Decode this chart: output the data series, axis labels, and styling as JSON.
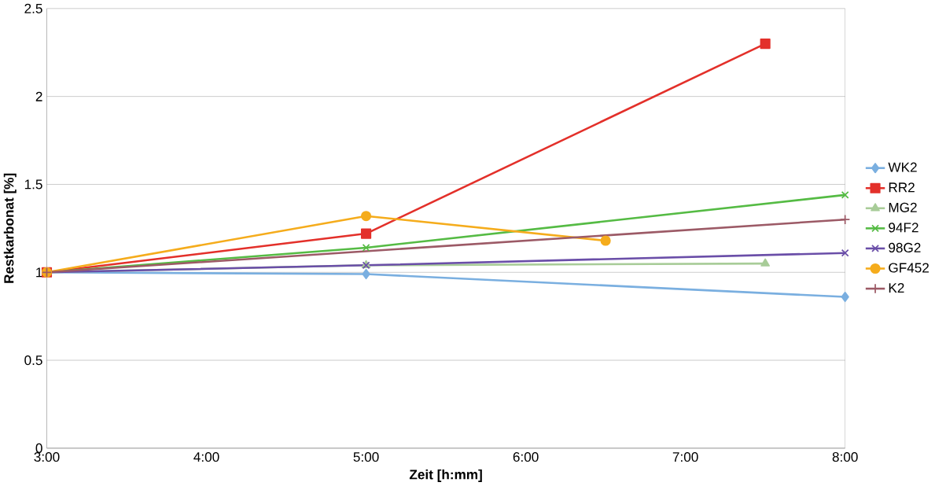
{
  "chart_data": {
    "type": "line",
    "xlabel": "Zeit [h:mm]",
    "ylabel": "Restkarbonat [%]",
    "xlim": [
      3,
      8
    ],
    "xticks": [
      {
        "value": 3,
        "label": "3:00"
      },
      {
        "value": 4,
        "label": "4:00"
      },
      {
        "value": 5,
        "label": "5:00"
      },
      {
        "value": 6,
        "label": "6:00"
      },
      {
        "value": 7,
        "label": "7:00"
      },
      {
        "value": 8,
        "label": "8:00"
      }
    ],
    "ylim": [
      0,
      2.5
    ],
    "yticks": [
      0,
      0.5,
      1,
      1.5,
      2,
      2.5
    ],
    "grid": "y",
    "legend": "right",
    "series": [
      {
        "name": "WK2",
        "color": "#7aafe0",
        "marker": "diamond",
        "x": [
          3,
          5,
          8
        ],
        "values": [
          1.0,
          0.99,
          0.86
        ]
      },
      {
        "name": "RR2",
        "color": "#e3302a",
        "marker": "square",
        "x": [
          3,
          5,
          7.5
        ],
        "values": [
          1.0,
          1.22,
          2.3
        ]
      },
      {
        "name": "MG2",
        "color": "#a8cc98",
        "marker": "triangle",
        "x": [
          3,
          5,
          7.5
        ],
        "values": [
          1.0,
          1.04,
          1.05
        ]
      },
      {
        "name": "94F2",
        "color": "#55bb44",
        "marker": "cross",
        "x": [
          3,
          5,
          8
        ],
        "values": [
          1.0,
          1.14,
          1.44
        ]
      },
      {
        "name": "98G2",
        "color": "#6a4ea8",
        "marker": "cross",
        "x": [
          3,
          5,
          8
        ],
        "values": [
          1.0,
          1.04,
          1.11
        ]
      },
      {
        "name": "GF452",
        "color": "#f5ac1c",
        "marker": "circle",
        "x": [
          3,
          5,
          6.5
        ],
        "values": [
          1.0,
          1.32,
          1.18
        ]
      },
      {
        "name": "K2",
        "color": "#9c5a66",
        "marker": "plus",
        "x": [
          3,
          8
        ],
        "values": [
          1.0,
          1.3
        ]
      }
    ]
  }
}
